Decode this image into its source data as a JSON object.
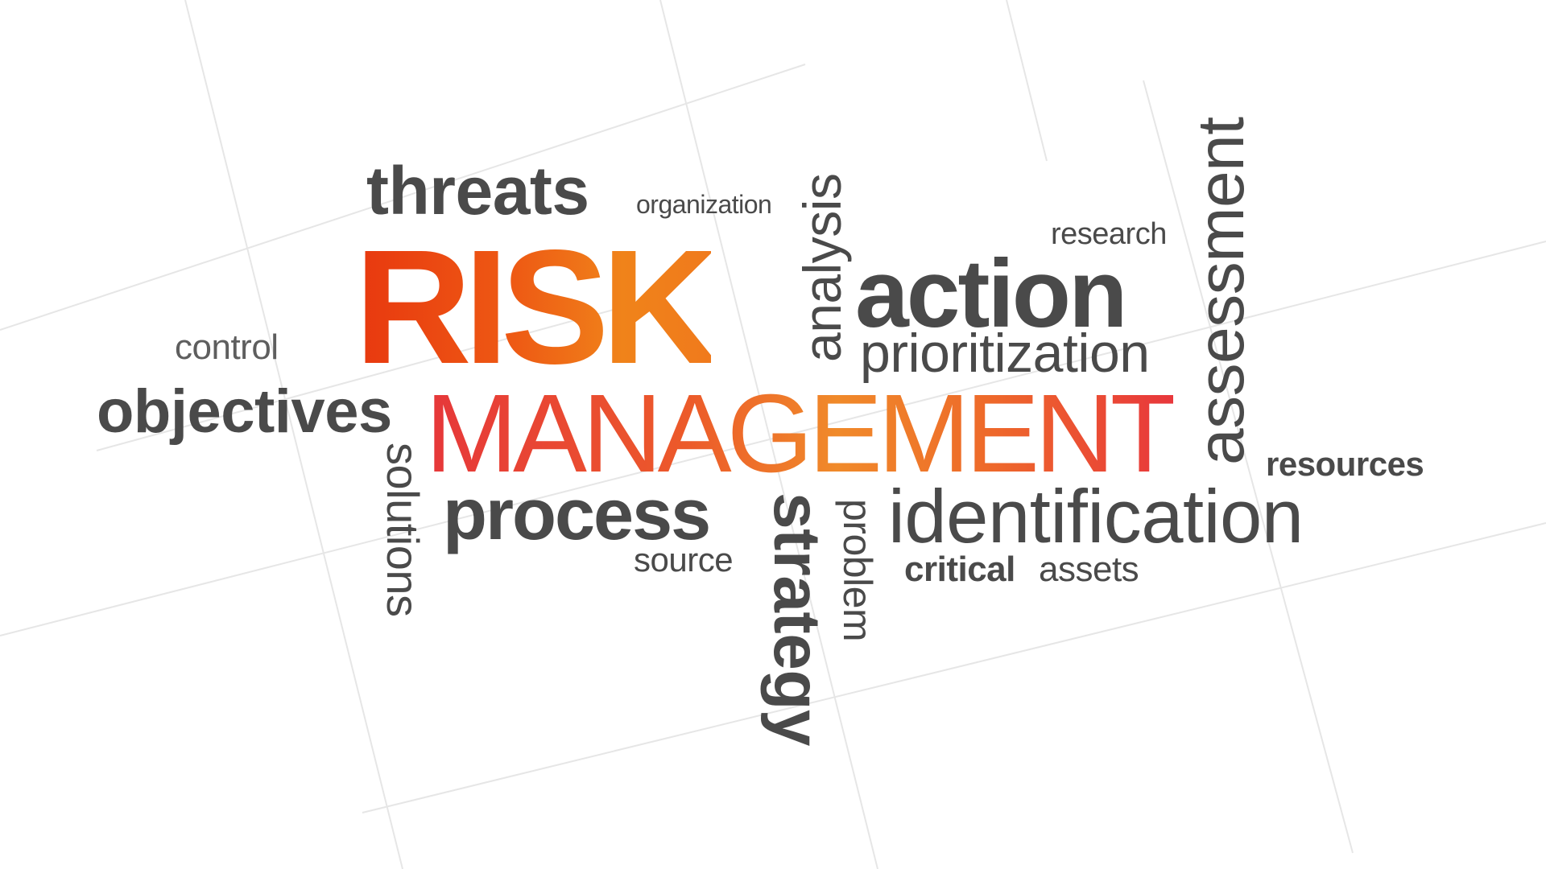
{
  "colors": {
    "text": "#4a4a4a",
    "risk_gradient": [
      "#e8380f",
      "#f0831a"
    ],
    "management_gradient": [
      "#e6373a",
      "#f08a2a",
      "#e8373c"
    ]
  },
  "words": {
    "threats": "threats",
    "organization": "organization",
    "risk": "RISK",
    "analysis": "analysis",
    "research": "research",
    "action": "action",
    "prioritization": "prioritization",
    "assessment": "assessment",
    "control": "control",
    "objectives": "objectives",
    "management": "MANAGEMENT",
    "resources": "resources",
    "solutions": "solutions",
    "process": "process",
    "source": "source",
    "strategy": "strategy",
    "problem": "problem",
    "identification": "identification",
    "critical": "critical",
    "assets": "assets"
  }
}
